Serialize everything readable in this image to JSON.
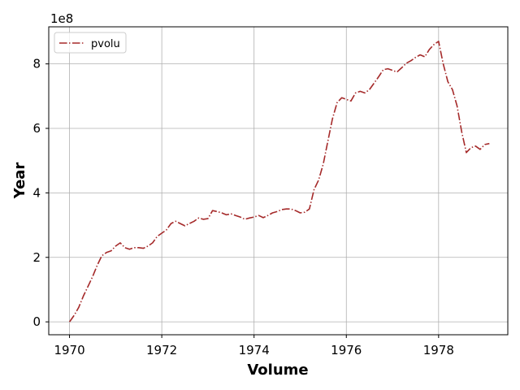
{
  "chart_data": {
    "type": "line",
    "xlabel": "Volume",
    "ylabel": "Year",
    "y_offset_text": "1e8",
    "xlim": [
      1969.55,
      1979.5
    ],
    "ylim": [
      -40000000,
      915000000
    ],
    "x_ticks": [
      1970,
      1972,
      1974,
      1976,
      1978
    ],
    "x_tick_labels": [
      "1970",
      "1972",
      "1974",
      "1976",
      "1978"
    ],
    "y_ticks": [
      0,
      200000000,
      400000000,
      600000000,
      800000000
    ],
    "y_tick_labels": [
      "0",
      "2",
      "4",
      "6",
      "8"
    ],
    "grid": true,
    "legend_position": "upper-left",
    "series": [
      {
        "name": "pvolu",
        "color": "#a52a2a",
        "linestyle": "dashdot",
        "x": [
          1970.0,
          1970.1,
          1970.2,
          1970.3,
          1970.4,
          1970.5,
          1970.6,
          1970.7,
          1970.8,
          1970.9,
          1971.0,
          1971.1,
          1971.2,
          1971.3,
          1971.4,
          1971.5,
          1971.6,
          1971.7,
          1971.8,
          1971.9,
          1972.0,
          1972.1,
          1972.2,
          1972.3,
          1972.4,
          1972.5,
          1972.6,
          1972.7,
          1972.8,
          1972.9,
          1973.0,
          1973.1,
          1973.2,
          1973.3,
          1973.4,
          1973.5,
          1973.6,
          1973.7,
          1973.8,
          1973.9,
          1974.0,
          1974.1,
          1974.2,
          1974.3,
          1974.4,
          1974.5,
          1974.6,
          1974.7,
          1974.8,
          1974.9,
          1975.0,
          1975.1,
          1975.2,
          1975.3,
          1975.4,
          1975.5,
          1975.6,
          1975.7,
          1975.8,
          1975.9,
          1976.0,
          1976.1,
          1976.2,
          1976.3,
          1976.4,
          1976.5,
          1976.6,
          1976.7,
          1976.8,
          1976.9,
          1977.0,
          1977.1,
          1977.2,
          1977.3,
          1977.4,
          1977.5,
          1977.6,
          1977.7,
          1977.8,
          1977.9,
          1978.0,
          1978.1,
          1978.2,
          1978.3,
          1978.4,
          1978.5,
          1978.6,
          1978.7,
          1978.8,
          1978.9,
          1979.0,
          1979.1
        ],
        "values": [
          0,
          20000000,
          45000000,
          80000000,
          110000000,
          140000000,
          175000000,
          205000000,
          215000000,
          220000000,
          235000000,
          245000000,
          230000000,
          225000000,
          230000000,
          230000000,
          228000000,
          235000000,
          245000000,
          265000000,
          275000000,
          285000000,
          305000000,
          312000000,
          305000000,
          298000000,
          305000000,
          312000000,
          322000000,
          318000000,
          320000000,
          345000000,
          342000000,
          338000000,
          332000000,
          335000000,
          330000000,
          325000000,
          318000000,
          322000000,
          325000000,
          330000000,
          323000000,
          330000000,
          338000000,
          342000000,
          348000000,
          350000000,
          350000000,
          345000000,
          338000000,
          340000000,
          350000000,
          410000000,
          440000000,
          490000000,
          560000000,
          630000000,
          680000000,
          695000000,
          690000000,
          685000000,
          710000000,
          715000000,
          710000000,
          720000000,
          740000000,
          760000000,
          782000000,
          785000000,
          780000000,
          775000000,
          788000000,
          802000000,
          810000000,
          820000000,
          828000000,
          822000000,
          845000000,
          860000000,
          870000000,
          800000000,
          745000000,
          720000000,
          670000000,
          590000000,
          525000000,
          540000000,
          545000000,
          535000000,
          550000000,
          553000000
        ]
      }
    ]
  }
}
